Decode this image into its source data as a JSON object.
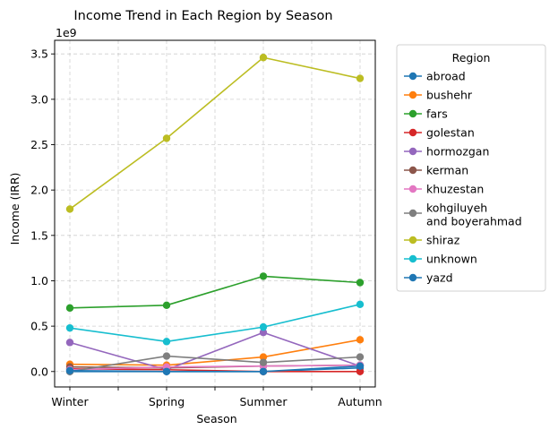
{
  "chart_data": {
    "type": "line",
    "title": "Income Trend in Each Region by Season",
    "xlabel": "Season",
    "ylabel": "Income (IRR)",
    "y_offset_label": "1e9",
    "categories": [
      "Winter",
      "Spring",
      "Summer",
      "Autumn"
    ],
    "ylim": [
      -0.17,
      3.65
    ],
    "yticks": [
      0.0,
      0.5,
      1.0,
      1.5,
      2.0,
      2.5,
      3.0,
      3.5
    ],
    "ytick_labels": [
      "0.0",
      "0.5",
      "1.0",
      "1.5",
      "2.0",
      "2.5",
      "3.0",
      "3.5"
    ],
    "grid": true,
    "legend": {
      "title": "Region",
      "placement": "outside-right"
    },
    "series": [
      {
        "name": "abroad",
        "color": "#1f77b4",
        "values": [
          0.0,
          0.0,
          0.0,
          0.04
        ]
      },
      {
        "name": "bushehr",
        "color": "#ff7f0e",
        "values": [
          0.08,
          0.07,
          0.16,
          0.35
        ]
      },
      {
        "name": "fars",
        "color": "#2ca02c",
        "values": [
          0.7,
          0.73,
          1.05,
          0.98
        ]
      },
      {
        "name": "golestan",
        "color": "#d62728",
        "values": [
          0.03,
          0.02,
          0.0,
          0.0
        ]
      },
      {
        "name": "hormozgan",
        "color": "#9467bd",
        "values": [
          0.32,
          0.02,
          0.43,
          0.06
        ]
      },
      {
        "name": "kerman",
        "color": "#8c564b",
        "values": [
          0.05,
          0.04,
          0.06,
          0.07
        ]
      },
      {
        "name": "khuzestan",
        "color": "#e377c2",
        "values": [
          0.02,
          0.05,
          0.06,
          0.07
        ]
      },
      {
        "name": "kohgiluyeh\nand boyerahmad",
        "color": "#7f7f7f",
        "values": [
          0.0,
          0.17,
          0.1,
          0.16
        ]
      },
      {
        "name": "shiraz",
        "color": "#bcbd22",
        "values": [
          1.79,
          2.57,
          3.46,
          3.23
        ]
      },
      {
        "name": "unknown",
        "color": "#17becf",
        "values": [
          0.48,
          0.33,
          0.49,
          0.74
        ]
      },
      {
        "name": "yazd",
        "color": "#1f77b4",
        "values": [
          0.01,
          0.0,
          0.0,
          0.06
        ]
      }
    ]
  }
}
